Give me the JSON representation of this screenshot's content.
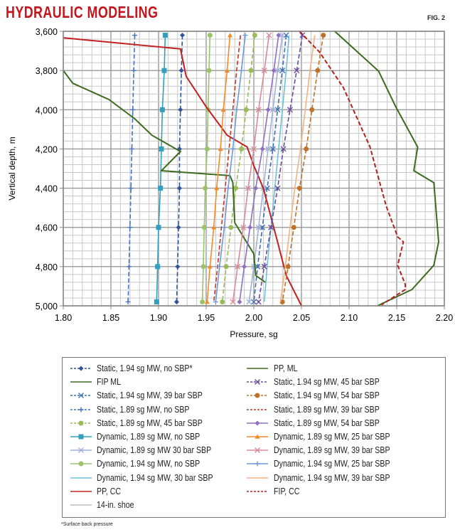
{
  "header": {
    "title": "HYDRAULIC MODELING",
    "figure": "FIG. 2"
  },
  "footnote": "*Surface back pressure",
  "chart_data": {
    "type": "line",
    "xlabel": "Pressure, sg",
    "ylabel": "Vertical depth, m",
    "xlim": [
      1.8,
      2.2
    ],
    "ylim": [
      3600,
      5000
    ],
    "y_inverted": true,
    "grid": true,
    "legend_position": "bottom",
    "x_ticks": [
      "1.80",
      "1.85",
      "1.90",
      "1.95",
      "2.00",
      "2.05",
      "2.10",
      "2.15",
      "2.20"
    ],
    "y_ticks": [
      "3,600",
      "3,800",
      "4,000",
      "4,200",
      "4,400",
      "4,600",
      "4,800",
      "5,000"
    ],
    "depths": [
      3620,
      3800,
      4000,
      4200,
      4400,
      4600,
      4800,
      4980
    ],
    "series": [
      {
        "name": "Static, 1.94 sg MW, no SBP*",
        "color": "#2e5597",
        "dash": true,
        "marker": "diamond",
        "pressure": [
          1.925,
          1.924,
          1.923,
          1.922,
          1.922,
          1.921,
          1.92,
          1.919
        ]
      },
      {
        "name": "FIP ML",
        "color": "#3d6b1e",
        "dash": false,
        "marker": "none",
        "points": [
          [
            2.085,
            3600
          ],
          [
            2.131,
            3803
          ],
          [
            2.149,
            3985
          ],
          [
            2.172,
            4190
          ],
          [
            2.168,
            4311
          ],
          [
            2.189,
            4372
          ],
          [
            2.194,
            4674
          ],
          [
            2.189,
            4793
          ],
          [
            2.166,
            4917
          ],
          [
            2.134,
            4990
          ],
          [
            2.13,
            5000
          ]
        ]
      },
      {
        "name": "Static, 1.94 sg MW, 39 bar SBP",
        "color": "#3f6fb5",
        "dash": true,
        "marker": "x",
        "pressure": [
          2.034,
          2.03,
          2.025,
          2.02,
          2.014,
          2.009,
          2.004,
          2.0
        ]
      },
      {
        "name": "Static, 1.89 sg MW, no SBP",
        "color": "#4472c4",
        "dash": true,
        "marker": "plus",
        "pressure": [
          1.875,
          1.874,
          1.873,
          1.872,
          1.871,
          1.87,
          1.869,
          1.868
        ]
      },
      {
        "name": "Static, 1.89 sg MW, 45 bar SBP",
        "color": "#9bbb59",
        "dash": true,
        "marker": "circle",
        "pressure": [
          2.001,
          1.997,
          1.992,
          1.987,
          1.981,
          1.976,
          1.971,
          1.967
        ]
      },
      {
        "name": "Dynamic, 1.89 sg MW, no SBP",
        "color": "#31a0c0",
        "dash": false,
        "marker": "square",
        "pressure": [
          1.907,
          1.906,
          1.904,
          1.903,
          1.902,
          1.9,
          1.899,
          1.898
        ]
      },
      {
        "name": "Dynamic, 1.89 sg MW 30 bar SBP",
        "color": "#9fb0da",
        "dash": false,
        "marker": "x",
        "pressure": [
          2.03,
          2.025,
          2.02,
          2.015,
          2.01,
          2.005,
          2.0,
          1.995
        ]
      },
      {
        "name": "Dynamic, 1.94 sg MW, no SBP",
        "color": "#9bc36a",
        "dash": false,
        "marker": "circle",
        "pressure": [
          1.954,
          1.953,
          1.952,
          1.951,
          1.949,
          1.948,
          1.947,
          1.946
        ]
      },
      {
        "name": "Dynamic, 1.94 sg MW, 30 bar SBP",
        "color": "#6cc0e0",
        "dash": false,
        "marker": "none",
        "pressure": [
          2.037,
          2.034,
          2.03,
          2.026,
          2.022,
          2.018,
          2.014,
          2.011
        ]
      },
      {
        "name": "PP, CC",
        "color": "#c0211f",
        "dash": false,
        "marker": "none",
        "points": [
          [
            1.8,
            3633
          ],
          [
            1.923,
            3690
          ],
          [
            1.929,
            3830
          ],
          [
            1.95,
            3985
          ],
          [
            1.972,
            4130
          ],
          [
            1.993,
            4190
          ],
          [
            2.0,
            4285
          ],
          [
            2.01,
            4400
          ],
          [
            2.025,
            4675
          ],
          [
            2.034,
            4845
          ],
          [
            2.049,
            4990
          ],
          [
            2.05,
            5000
          ]
        ]
      },
      {
        "name": "14-in. shoe",
        "color": "#bbbbbb",
        "dash": false,
        "marker": "none"
      },
      {
        "name": "PP, ML",
        "color": "#3d6b1e",
        "dash": false,
        "marker": "none",
        "points": [
          [
            1.8,
            3800
          ],
          [
            1.81,
            3865
          ],
          [
            1.848,
            3948
          ],
          [
            1.875,
            4046
          ],
          [
            1.893,
            4130
          ],
          [
            1.923,
            4213
          ],
          [
            1.903,
            4311
          ],
          [
            1.975,
            4336
          ],
          [
            1.978,
            4372
          ],
          [
            1.98,
            4576
          ],
          [
            2.0,
            4735
          ],
          [
            2.002,
            4845
          ],
          [
            2.012,
            4880
          ]
        ]
      },
      {
        "name": "Static, 1.94 sg MW, 45 bar SBP",
        "color": "#6a4c9c",
        "dash": true,
        "marker": "x",
        "pressure": [
          2.051,
          2.045,
          2.038,
          2.031,
          2.025,
          2.018,
          2.011,
          2.005
        ]
      },
      {
        "name": "Static, 1.94 sg MW, 54 bar SBP",
        "color": "#c0722a",
        "dash": true,
        "marker": "circle",
        "pressure": [
          2.073,
          2.067,
          2.061,
          2.055,
          2.048,
          2.042,
          2.036,
          2.03
        ]
      },
      {
        "name": "Static, 1.89 sg MW, 39 bar SBP",
        "color": "#c0392b",
        "dash": true,
        "marker": "none",
        "pressure": [
          1.986,
          1.982,
          1.978,
          1.974,
          1.97,
          1.966,
          1.962,
          1.958
        ]
      },
      {
        "name": "Static, 1.89 sg MW, 54 bar SBP",
        "color": "#8e6fc4",
        "dash": false,
        "marker": "diamond",
        "pressure": [
          2.026,
          2.021,
          2.015,
          2.009,
          2.002,
          1.996,
          1.99,
          1.985
        ]
      },
      {
        "name": "Dynamic, 1.89 sg MW, 25 bar SBP",
        "color": "#f58a2a",
        "dash": false,
        "marker": "triangle",
        "pressure": [
          1.975,
          1.972,
          1.968,
          1.965,
          1.961,
          1.958,
          1.954,
          1.951
        ]
      },
      {
        "name": "Dynamic, 1.89 sg MW, 39 bar SBP",
        "color": "#d88a9a",
        "dash": false,
        "marker": "x",
        "pressure": [
          2.016,
          2.011,
          2.005,
          2.0,
          1.994,
          1.989,
          1.983,
          1.978
        ]
      },
      {
        "name": "Dynamic, 1.94 sg MW, 25 bar SBP",
        "color": "#6f9ad8",
        "dash": false,
        "marker": "plus",
        "pressure": [
          1.991,
          1.987,
          1.982,
          1.978,
          1.973,
          1.969,
          1.964,
          1.96
        ]
      },
      {
        "name": "Dynamic, 1.94 sg MW, 39 bar SBP",
        "color": "#f4b183",
        "dash": false,
        "marker": "none",
        "pressure": [
          2.064,
          2.059,
          2.054,
          2.049,
          2.043,
          2.038,
          2.033,
          2.028
        ]
      },
      {
        "name": "FIP, CC",
        "color": "#b22222",
        "dash": true,
        "marker": "none",
        "points": [
          [
            2.048,
            3600
          ],
          [
            2.069,
            3706
          ],
          [
            2.094,
            3887
          ],
          [
            2.122,
            4190
          ],
          [
            2.139,
            4492
          ],
          [
            2.151,
            4648
          ],
          [
            2.157,
            4674
          ],
          [
            2.151,
            4793
          ],
          [
            2.159,
            4891
          ],
          [
            2.159,
            4917
          ],
          [
            2.134,
            4995
          ]
        ]
      }
    ]
  }
}
